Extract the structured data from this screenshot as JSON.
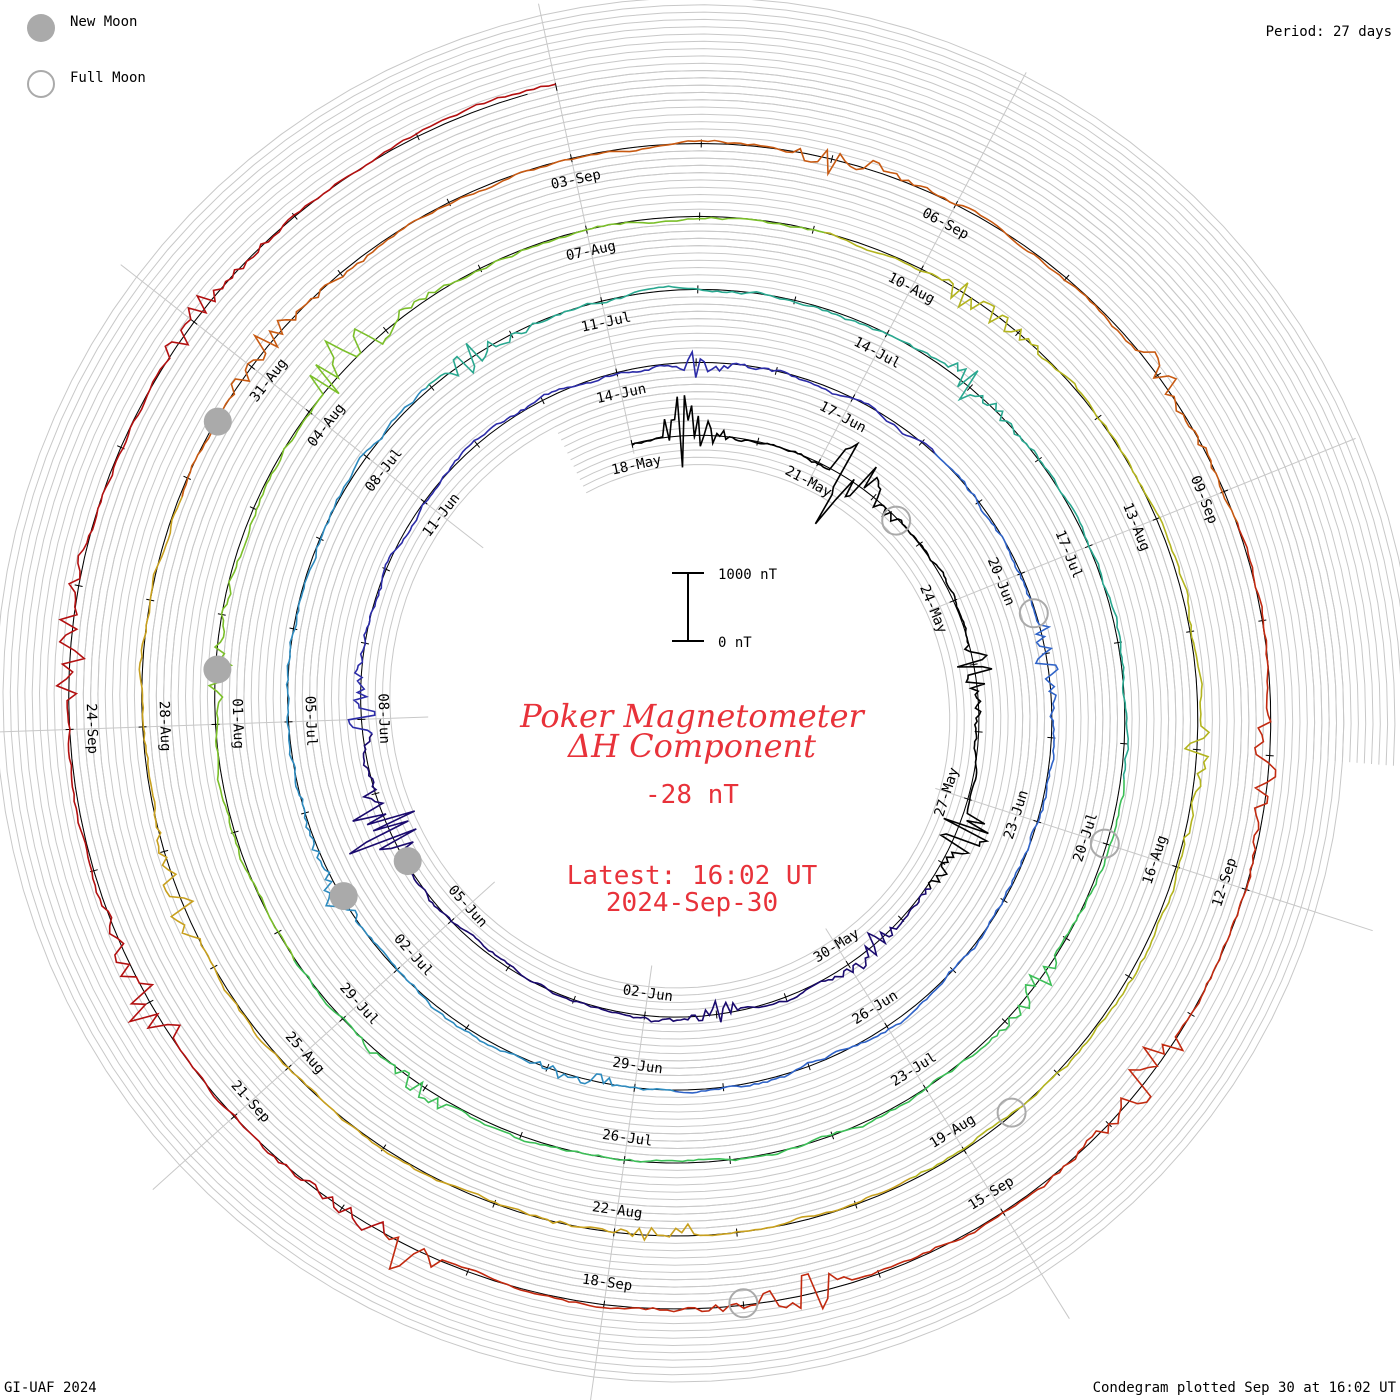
{
  "legend": {
    "new_moon_label": "New Moon",
    "full_moon_label": "Full Moon",
    "new_moon_color": "#aaaaaa",
    "full_moon_color": "#aaaaaa"
  },
  "period_text": "Period: 27 days",
  "footer_left": "GI-UAF 2024",
  "footer_right": "Condegram plotted Sep 30 at 16:02 UT",
  "center": {
    "title_line1": "Poker Magnetometer",
    "title_line2": "ΔH Component",
    "current_value": "-28 nT",
    "latest_line1": "Latest: 16:02 UT",
    "latest_line2": "2024-Sep-30",
    "scale_top": "1000 nT",
    "scale_bottom": "0 nT",
    "text_color": "#e8323a"
  },
  "chart_data": {
    "type": "line",
    "plot_style": "condegram spiral (one revolution per 27-day period)",
    "period_days": 27,
    "start_date": "2024-May-18",
    "end_date": "2024-Sep-30",
    "scale_bar_nT": [
      0,
      1000
    ],
    "grid": true,
    "date_labels": [
      "18-May",
      "21-May",
      "24-May",
      "27-May",
      "30-May",
      "02-Jun",
      "05-Jun",
      "08-Jun",
      "11-Jun",
      "14-Jun",
      "17-Jun",
      "20-Jun",
      "23-Jun",
      "26-Jun",
      "29-Jun",
      "02-Jul",
      "05-Jul",
      "08-Jul",
      "11-Jul",
      "14-Jul",
      "17-Jul",
      "20-Jul",
      "23-Jul",
      "26-Jul",
      "29-Jul",
      "01-Aug",
      "04-Aug",
      "07-Aug",
      "10-Aug",
      "13-Aug",
      "16-Aug",
      "19-Aug",
      "22-Aug",
      "25-Aug",
      "28-Aug",
      "31-Aug",
      "03-Sep",
      "06-Sep",
      "09-Sep",
      "12-Sep",
      "15-Sep",
      "18-Sep",
      "21-Sep",
      "24-Sep"
    ],
    "series": [
      {
        "day_start": 0,
        "day_end": 135,
        "colors": [
          "#000000",
          "#1a0a6e",
          "#2c2ca8",
          "#2f63c8",
          "#2e8bbf",
          "#2aa890",
          "#3cbf57",
          "#7bbf2a",
          "#b3b41e",
          "#c8a01e",
          "#c85a12",
          "#c22a10",
          "#b31010"
        ],
        "disturbances": [
          {
            "day": 0.8,
            "nT": 900
          },
          {
            "day": 3.5,
            "nT": 1100
          },
          {
            "day": 7.0,
            "nT": 400
          },
          {
            "day": 9.5,
            "nT": 700
          },
          {
            "day": 11.5,
            "nT": 350
          },
          {
            "day": 14.0,
            "nT": 250
          },
          {
            "day": 19.5,
            "nT": 1000
          },
          {
            "day": 21.0,
            "nT": 400
          },
          {
            "day": 28.0,
            "nT": 300
          },
          {
            "day": 34.0,
            "nT": 350
          },
          {
            "day": 42.5,
            "nT": 300
          },
          {
            "day": 46.0,
            "nT": 350
          },
          {
            "day": 52.5,
            "nT": 400
          },
          {
            "day": 58.0,
            "nT": 350
          },
          {
            "day": 64.5,
            "nT": 250
          },
          {
            "day": 71.0,
            "nT": 350
          },
          {
            "day": 75.5,
            "nT": 250
          },
          {
            "day": 78.5,
            "nT": 900
          },
          {
            "day": 84.5,
            "nT": 450
          },
          {
            "day": 89.0,
            "nT": 300
          },
          {
            "day": 95.5,
            "nT": 400
          },
          {
            "day": 100.5,
            "nT": 350
          },
          {
            "day": 105.0,
            "nT": 500
          },
          {
            "day": 110.0,
            "nT": 300
          },
          {
            "day": 113.0,
            "nT": 400
          },
          {
            "day": 116.0,
            "nT": 350
          },
          {
            "day": 118.5,
            "nT": 550
          },
          {
            "day": 121.5,
            "nT": 450
          },
          {
            "day": 124.5,
            "nT": 600
          },
          {
            "day": 127.0,
            "nT": 550
          },
          {
            "day": 129.5,
            "nT": 450
          },
          {
            "day": 132.0,
            "nT": 400
          }
        ]
      }
    ],
    "new_moon_days": [
      19.0,
      46.0,
      75.5,
      104.5
    ],
    "full_moon_days": [
      4.5,
      33.5,
      63.0,
      92.5,
      122.0
    ]
  }
}
